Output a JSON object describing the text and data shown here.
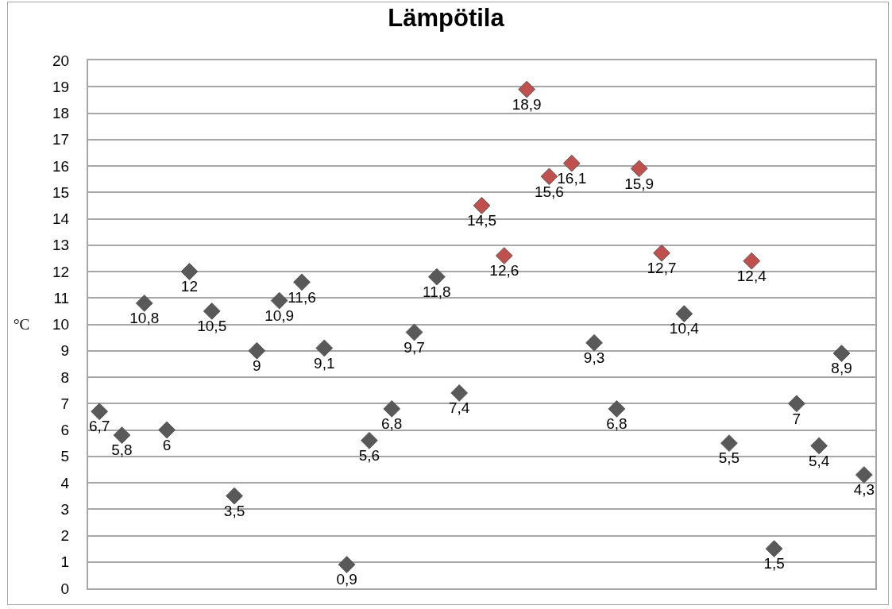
{
  "chart_data": {
    "type": "scatter",
    "title": "Lämpötila",
    "ylabel": "°C",
    "categories": [
      null,
      null,
      null,
      null,
      null,
      null,
      null,
      null,
      null,
      null,
      null,
      null,
      null,
      null,
      null,
      null,
      null,
      null,
      null,
      null,
      null,
      null,
      null,
      null,
      null,
      null,
      null,
      null,
      null,
      null,
      null,
      null,
      null,
      null,
      null
    ],
    "values": [
      6.7,
      5.8,
      10.8,
      6,
      12,
      10.5,
      3.5,
      9,
      10.9,
      11.6,
      9.1,
      0.9,
      5.6,
      6.8,
      9.7,
      11.8,
      7.4,
      14.5,
      12.6,
      18.9,
      15.6,
      16.1,
      9.3,
      6.8,
      15.9,
      12.7,
      10.4,
      null,
      5.5,
      12.4,
      1.5,
      7,
      5.4,
      8.9,
      4.3
    ],
    "value_labels": [
      "6,7",
      "5,8",
      "10,8",
      "6",
      "12",
      "10,5",
      "3,5",
      "9",
      "10,9",
      "11,6",
      "9,1",
      "0,9",
      "5,6",
      "6,8",
      "9,7",
      "11,8",
      "7,4",
      "14,5",
      "12,6",
      "18,9",
      "15,6",
      "16,1",
      "9,3",
      "6,8",
      "15,9",
      "12,7",
      "10,4",
      null,
      "5,5",
      "12,4",
      "1,5",
      "7",
      "5,4",
      "8,9",
      "4,3"
    ],
    "colors": [
      "#595959",
      "#595959",
      "#595959",
      "#595959",
      "#595959",
      "#595959",
      "#595959",
      "#595959",
      "#595959",
      "#595959",
      "#595959",
      "#595959",
      "#595959",
      "#595959",
      "#595959",
      "#595959",
      "#595959",
      "#c0504d",
      "#c0504d",
      "#c0504d",
      "#c0504d",
      "#c0504d",
      "#595959",
      "#595959",
      "#c0504d",
      "#c0504d",
      "#595959",
      null,
      "#595959",
      "#c0504d",
      "#595959",
      "#595959",
      "#595959",
      "#595959",
      "#595959"
    ],
    "ylim": [
      0,
      20
    ],
    "yticks": [
      0,
      1,
      2,
      3,
      4,
      5,
      6,
      7,
      8,
      9,
      10,
      11,
      12,
      13,
      14,
      15,
      16,
      17,
      18,
      19,
      20
    ],
    "grid": "y",
    "marker": "diamond",
    "tick_labels": "y"
  }
}
